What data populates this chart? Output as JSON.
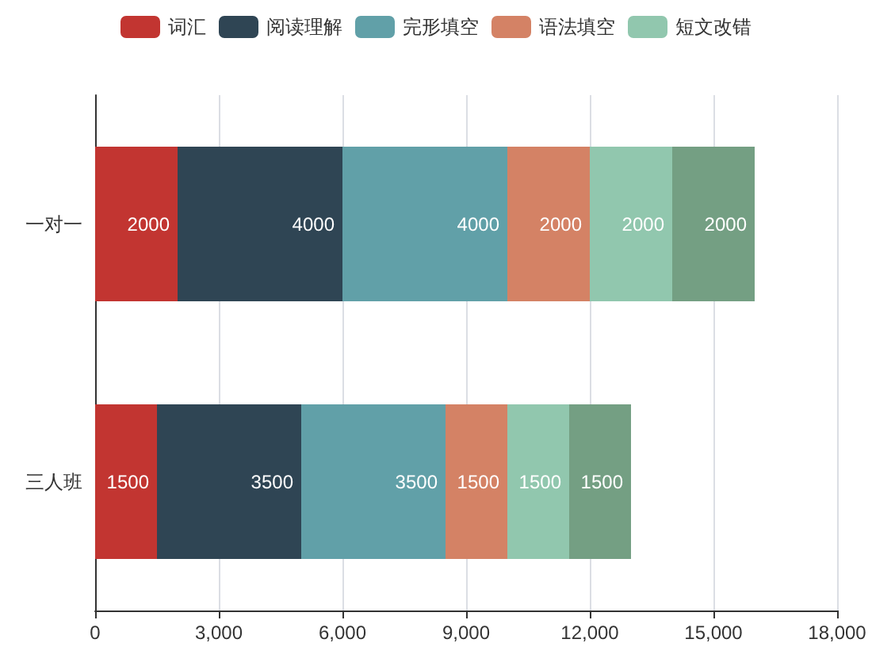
{
  "chart_data": {
    "type": "bar",
    "orientation": "horizontal",
    "stacked": true,
    "categories": [
      "一对一",
      "三人班"
    ],
    "series": [
      {
        "name": "词汇",
        "color": "#c23531",
        "values": [
          2000,
          1500
        ]
      },
      {
        "name": "阅读理解",
        "color": "#2f4554",
        "values": [
          4000,
          3500
        ]
      },
      {
        "name": "完形填空",
        "color": "#61a0a8",
        "values": [
          4000,
          3500
        ]
      },
      {
        "name": "语法填空",
        "color": "#d48265",
        "values": [
          2000,
          1500
        ]
      },
      {
        "name": "短文改错",
        "color": "#91c7ae",
        "values": [
          2000,
          1500
        ]
      },
      {
        "color": "#749f83",
        "values": [
          2000,
          1500
        ]
      }
    ],
    "xlim": [
      0,
      18000
    ],
    "xticks": [
      0,
      {
        "value": 3000,
        "label": "3,000"
      },
      {
        "value": 6000,
        "label": "6,000"
      },
      {
        "value": 9000,
        "label": "9,000"
      },
      {
        "value": 12000,
        "label": "12,000"
      },
      {
        "value": 15000,
        "label": "15,000"
      },
      {
        "value": 18000,
        "label": "18,000"
      }
    ],
    "grid": "x",
    "legend": "top",
    "data_labels": true
  }
}
